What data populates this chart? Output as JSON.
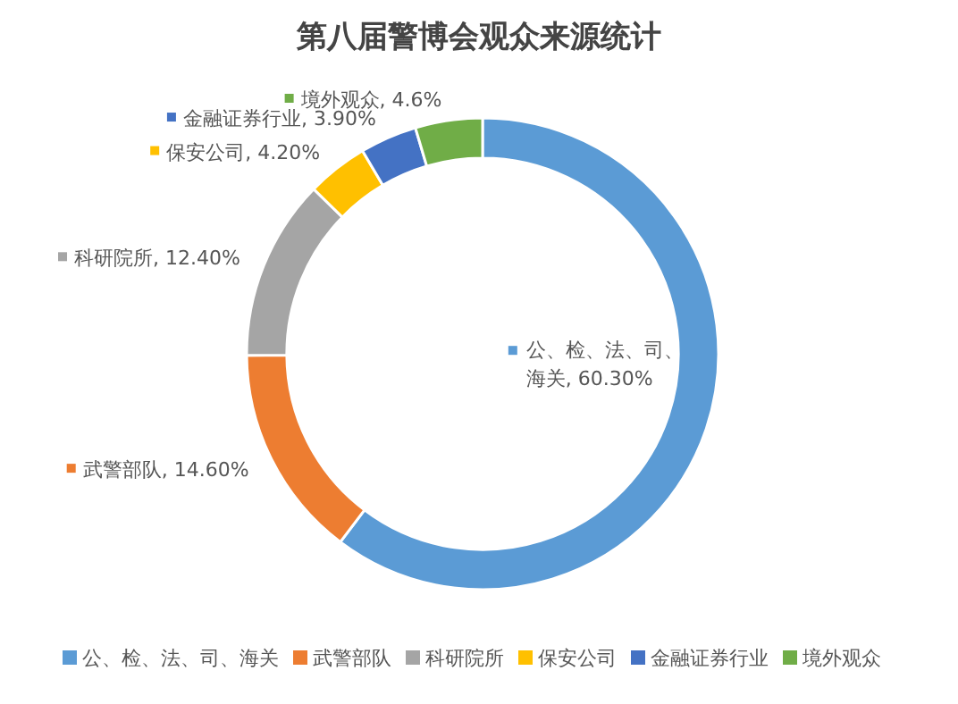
{
  "chart_data": {
    "type": "donut",
    "title": "第八届警博会观众来源统计",
    "categories": [
      "公、检、法、司、海关",
      "武警部队",
      "科研院所",
      "保安公司",
      "金融证券行业",
      "境外观众"
    ],
    "values": [
      60.3,
      14.6,
      12.4,
      4.2,
      3.9,
      4.6
    ],
    "colors": [
      "#5b9bd5",
      "#ed7d31",
      "#a5a5a5",
      "#ffc000",
      "#4472c4",
      "#70ad47"
    ],
    "value_labels": [
      "公、检、法、司、海关, 60.30%",
      "武警部队, 14.60%",
      "科研院所, 12.40%",
      "保安公司, 4.20%",
      "金融证券行业, 3.90%",
      "境外观众, 4.6%"
    ],
    "legend": "bottom"
  }
}
